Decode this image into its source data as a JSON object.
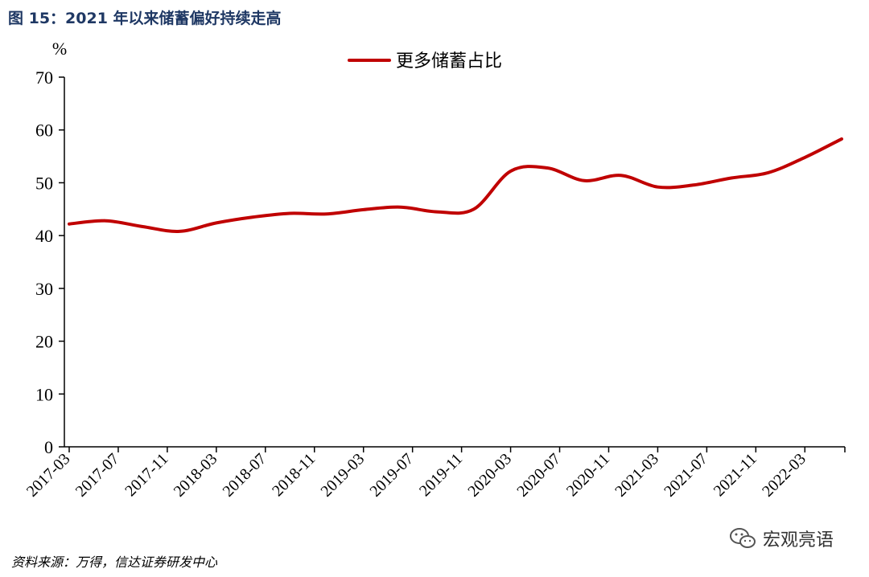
{
  "figure": {
    "title": "图 15：2021 年以来储蓄偏好持续走高",
    "source": "资料来源：万得，信达证券研发中心",
    "watermark": "宏观亮语",
    "watermark_icon": "wechat-icon"
  },
  "chart_data": {
    "type": "line",
    "title": "",
    "xlabel": "",
    "ylabel": "%",
    "ylim": [
      0,
      70
    ],
    "yticks": [
      0,
      10,
      20,
      30,
      40,
      50,
      60,
      70
    ],
    "xticks": [
      "2017-03",
      "2017-07",
      "2017-11",
      "2018-03",
      "2018-07",
      "2018-11",
      "2019-03",
      "2019-07",
      "2019-11",
      "2020-03",
      "2020-07",
      "2020-11",
      "2021-03",
      "2021-07",
      "2021-11",
      "2022-03"
    ],
    "grid": false,
    "legend_position": "top-center",
    "series": [
      {
        "name": "更多储蓄占比",
        "color": "#c00000",
        "x": [
          "2017-03",
          "2017-06",
          "2017-09",
          "2017-12",
          "2018-03",
          "2018-06",
          "2018-09",
          "2018-12",
          "2019-03",
          "2019-06",
          "2019-09",
          "2019-12",
          "2020-03",
          "2020-06",
          "2020-09",
          "2020-12",
          "2021-03",
          "2021-06",
          "2021-09",
          "2021-12",
          "2022-03",
          "2022-06"
        ],
        "values": [
          42.2,
          42.8,
          41.7,
          40.8,
          42.4,
          43.5,
          44.2,
          44.1,
          44.9,
          45.4,
          44.5,
          45.0,
          52.2,
          52.8,
          50.4,
          51.4,
          49.2,
          49.6,
          50.9,
          51.9,
          54.8,
          58.3
        ]
      }
    ]
  }
}
